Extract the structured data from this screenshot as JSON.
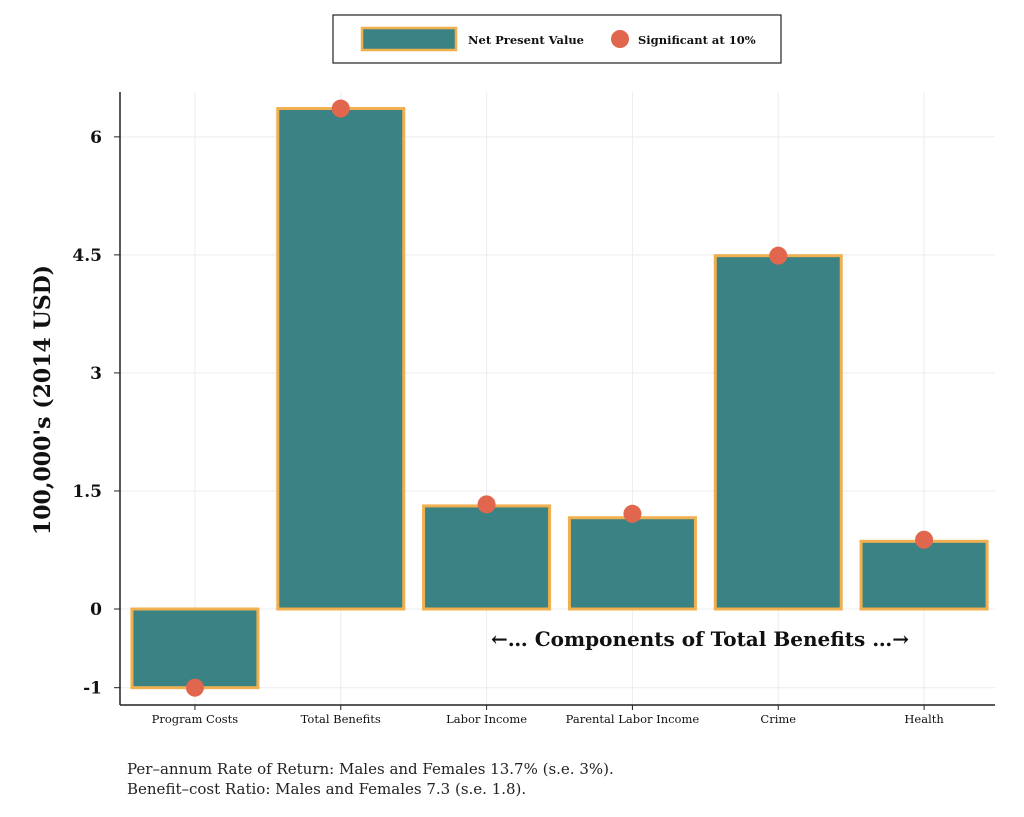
{
  "chart_data": {
    "type": "bar",
    "categories": [
      "Program Costs",
      "Total Benefits",
      "Labor Income",
      "Parental Labor Income",
      "Crime",
      "Health"
    ],
    "series": [
      {
        "name": "Net Present Value",
        "values": [
          -1.0,
          6.36,
          1.31,
          1.16,
          4.49,
          0.86
        ]
      },
      {
        "name": "Significant at 10%",
        "type": "scatter",
        "values": [
          -1.0,
          6.36,
          1.33,
          1.21,
          4.49,
          0.88
        ]
      }
    ],
    "ylabel": "100,000's (2014 USD)",
    "xlabel": "",
    "ylim": [
      -1.22,
      6.57
    ],
    "yticks": [
      -1,
      0,
      1.5,
      3,
      4.5,
      6
    ],
    "ytick_labels": [
      "-1",
      "0",
      "1.5",
      "3",
      "4.5",
      "6"
    ],
    "grid": true,
    "legend_position": "top-center",
    "annotation": "←…  Components of Total Benefits  …→",
    "colors": {
      "bar": "#3a8283",
      "bar_edge": "#f0b050",
      "dot": "#e0674d"
    }
  },
  "footnotes": [
    "Per–annum Rate of Return: Males and Females 13.7% (s.e. 3%).",
    "Benefit–cost Ratio: Males and Females 7.3 (s.e. 1.8)."
  ]
}
